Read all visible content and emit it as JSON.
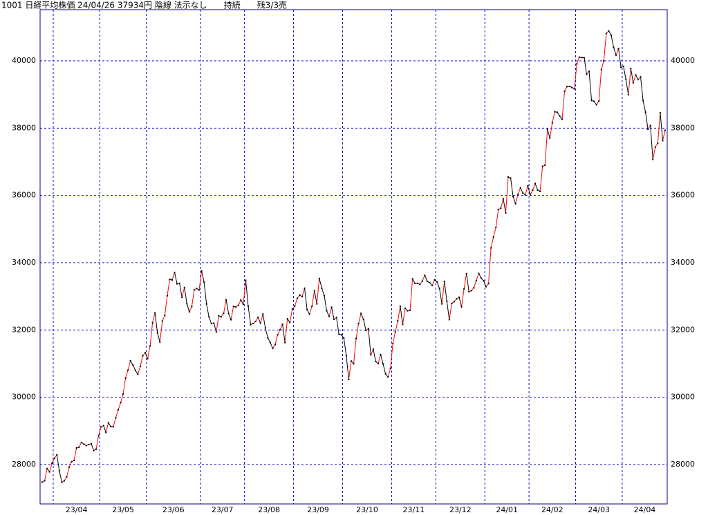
{
  "chart_data": {
    "type": "line",
    "title": "1001 日経平均株価 24/04/26 37934円 陰線 法示なし　　持続　　残3/3売",
    "up_color": "#ff0000",
    "down_color": "#000000",
    "grid_color": "#0000cc",
    "grid": true,
    "xlim": [
      0,
      254
    ],
    "xticks": [
      {
        "value": 5,
        "label": "23/04"
      },
      {
        "value": 24,
        "label": "23/05"
      },
      {
        "value": 43,
        "label": "23/06"
      },
      {
        "value": 65,
        "label": "23/07"
      },
      {
        "value": 83,
        "label": "23/08"
      },
      {
        "value": 103,
        "label": "23/09"
      },
      {
        "value": 123,
        "label": "23/10"
      },
      {
        "value": 143,
        "label": "23/11"
      },
      {
        "value": 161,
        "label": "23/12"
      },
      {
        "value": 181,
        "label": "24/01"
      },
      {
        "value": 199,
        "label": "24/02"
      },
      {
        "value": 218,
        "label": "24/03"
      },
      {
        "value": 237,
        "label": "24/04"
      }
    ],
    "ylim": [
      26829,
      41520
    ],
    "yticks": [
      28000,
      30000,
      32000,
      34000,
      36000,
      38000,
      40000
    ],
    "values": [
      27477,
      27518,
      27883,
      27782,
      28041,
      28188,
      28287,
      27813,
      27472,
      27518,
      27633,
      27923,
      28082,
      28123,
      28493,
      28514,
      28658,
      28606,
      28564,
      28593,
      28620,
      28416,
      28457,
      28856,
      29123,
      29157,
      28949,
      29242,
      29126,
      29122,
      29388,
      29626,
      29842,
      30093,
      30573,
      30808,
      31086,
      30957,
      30801,
      30682,
      30916,
      31233,
      31328,
      31148,
      31524,
      32217,
      32506,
      31913,
      31641,
      32265,
      32434,
      33018,
      33502,
      33485,
      33706,
      33370,
      33388,
      32971,
      33264,
      32781,
      32538,
      32698,
      33193,
      33234,
      33189,
      33753,
      33422,
      32773,
      32388,
      32189,
      32203,
      31943,
      32419,
      32391,
      32493,
      32896,
      32490,
      32304,
      32700,
      32682,
      32734,
      32891,
      32759,
      33476,
      32707,
      32159,
      32192,
      32254,
      32377,
      32204,
      32473,
      32059,
      31766,
      31626,
      31450,
      31565,
      31856,
      32010,
      32169,
      31624,
      32333,
      32226,
      32619,
      32710,
      32939,
      33036,
      32991,
      33241,
      32606,
      32467,
      32706,
      33168,
      32776,
      33533,
      33242,
      33023,
      32571,
      32402,
      32678,
      32315,
      32371,
      31872,
      31857,
      31759,
      31237,
      30526,
      31075,
      30994,
      31746,
      32189,
      32494,
      32315,
      31983,
      32040,
      31259,
      31430,
      31062,
      30999,
      31269,
      30991,
      30696,
      30601,
      30859,
      31601,
      31949,
      32271,
      32708,
      32166,
      32646,
      32568,
      32585,
      33519,
      33385,
      33388,
      33354,
      33451,
      33625,
      33447,
      33408,
      33321,
      33486,
      33431,
      33231,
      32775,
      33445,
      32858,
      32307,
      32791,
      32843,
      32926,
      32970,
      32686,
      33219,
      33675,
      33140,
      33169,
      33255,
      33464,
      33681,
      33540,
      33464,
      33288,
      33377,
      34441,
      34763,
      35049,
      35577,
      35619,
      35901,
      35477,
      36546,
      36517,
      35965,
      35751,
      36027,
      36226,
      36066,
      36011,
      36286,
      36011,
      36158,
      36354,
      36160,
      36119,
      36863,
      36897,
      37963,
      37703,
      38157,
      38487,
      38470,
      38363,
      38262,
      39098,
      39233,
      39239,
      39208,
      39166,
      39910,
      40109,
      40097,
      40090,
      39598,
      39688,
      38820,
      38797,
      38695,
      38807,
      39740,
      40003,
      40815,
      40888,
      40762,
      40398,
      40168,
      40369,
      39803,
      39838,
      39451,
      38992,
      39773,
      39347,
      39581,
      39442,
      39523,
      38820,
      38471,
      37962,
      38079,
      37068,
      37438,
      37552,
      38460,
      37628,
      37934
    ]
  }
}
